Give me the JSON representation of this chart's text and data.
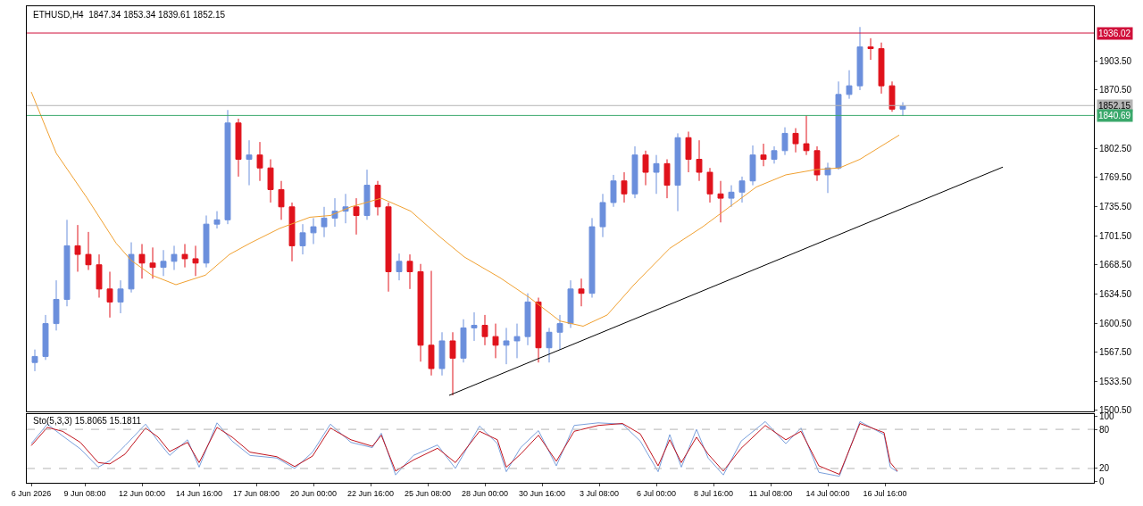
{
  "chart_data": [
    {
      "type": "candlestick",
      "title": "ETHUSD,H4  1847.34 1853.34 1839.61 1852.15",
      "x": [
        "2026-06-07T00:00",
        "2026-06-07T12:00",
        "2026-06-08T00:00",
        "2026-06-08T12:00",
        "2026-06-09T00:00",
        "2026-06-09T12:00",
        "2026-06-10T00:00",
        "2026-06-10T12:00",
        "2026-06-11T00:00",
        "2026-06-11T12:00",
        "2026-06-12T00:00",
        "2026-06-12T12:00",
        "2026-06-13T00:00",
        "2026-06-13T12:00",
        "2026-06-14T00:00",
        "2026-06-14T12:00",
        "2026-06-15T00:00",
        "2026-06-15T12:00",
        "2026-06-16T00:00",
        "2026-06-16T12:00",
        "2026-06-17T00:00",
        "2026-06-17T12:00",
        "2026-06-18T00:00",
        "2026-06-18T12:00",
        "2026-06-19T00:00",
        "2026-06-19T12:00",
        "2026-06-20T00:00",
        "2026-06-20T12:00",
        "2026-06-21T00:00",
        "2026-06-21T12:00",
        "2026-06-22T00:00",
        "2026-06-22T12:00",
        "2026-06-23T00:00",
        "2026-06-23T12:00",
        "2026-06-24T00:00",
        "2026-06-24T12:00",
        "2026-06-25T00:00",
        "2026-06-25T12:00",
        "2026-06-26T00:00",
        "2026-06-26T12:00",
        "2026-06-27T00:00",
        "2026-06-27T12:00",
        "2026-06-28T00:00",
        "2026-06-28T12:00",
        "2026-06-29T00:00",
        "2026-06-29T12:00",
        "2026-06-30T00:00",
        "2026-06-30T12:00",
        "2026-07-01T00:00",
        "2026-07-01T12:00",
        "2026-07-02T00:00",
        "2026-07-02T12:00",
        "2026-07-03T00:00",
        "2026-07-03T12:00",
        "2026-07-04T00:00",
        "2026-07-04T12:00",
        "2026-07-05T00:00",
        "2026-07-05T12:00",
        "2026-07-06T00:00",
        "2026-07-06T12:00",
        "2026-07-07T00:00",
        "2026-07-07T12:00",
        "2026-07-08T00:00",
        "2026-07-08T12:00",
        "2026-07-09T00:00",
        "2026-07-09T12:00",
        "2026-07-10T00:00",
        "2026-07-10T12:00",
        "2026-07-11T00:00",
        "2026-07-11T12:00",
        "2026-07-12T00:00",
        "2026-07-12T12:00",
        "2026-07-13T00:00",
        "2026-07-13T12:00",
        "2026-07-14T00:00",
        "2026-07-14T12:00",
        "2026-07-15T00:00",
        "2026-07-15T12:00",
        "2026-07-16T00:00",
        "2026-07-16T12:00",
        "2026-07-17T00:00",
        "2026-07-17T12:00"
      ],
      "ohlc": [
        [
          1555,
          1570,
          1545,
          1562
        ],
        [
          1562,
          1610,
          1558,
          1600
        ],
        [
          1600,
          1650,
          1592,
          1628
        ],
        [
          1628,
          1720,
          1620,
          1690
        ],
        [
          1690,
          1714,
          1660,
          1680
        ],
        [
          1680,
          1706,
          1662,
          1668
        ],
        [
          1668,
          1680,
          1630,
          1640
        ],
        [
          1640,
          1660,
          1607,
          1625
        ],
        [
          1625,
          1650,
          1612,
          1640
        ],
        [
          1640,
          1694,
          1636,
          1680
        ],
        [
          1680,
          1692,
          1652,
          1670
        ],
        [
          1670,
          1688,
          1652,
          1665
        ],
        [
          1665,
          1685,
          1655,
          1672
        ],
        [
          1672,
          1690,
          1662,
          1680
        ],
        [
          1680,
          1692,
          1665,
          1675
        ],
        [
          1675,
          1690,
          1655,
          1670
        ],
        [
          1670,
          1725,
          1665,
          1715
        ],
        [
          1715,
          1730,
          1710,
          1720
        ],
        [
          1720,
          1847,
          1715,
          1832
        ],
        [
          1832,
          1837,
          1770,
          1790
        ],
        [
          1790,
          1812,
          1760,
          1795
        ],
        [
          1795,
          1810,
          1765,
          1780
        ],
        [
          1780,
          1790,
          1740,
          1755
        ],
        [
          1755,
          1765,
          1720,
          1735
        ],
        [
          1735,
          1740,
          1672,
          1690
        ],
        [
          1690,
          1715,
          1680,
          1705
        ],
        [
          1705,
          1722,
          1692,
          1712
        ],
        [
          1712,
          1735,
          1700,
          1722
        ],
        [
          1722,
          1745,
          1712,
          1730
        ],
        [
          1730,
          1750,
          1716,
          1735
        ],
        [
          1735,
          1745,
          1703,
          1725
        ],
        [
          1725,
          1778,
          1720,
          1760
        ],
        [
          1760,
          1765,
          1725,
          1735
        ],
        [
          1735,
          1740,
          1637,
          1660
        ],
        [
          1660,
          1681,
          1650,
          1672
        ],
        [
          1672,
          1680,
          1640,
          1660
        ],
        [
          1660,
          1669,
          1556,
          1575
        ],
        [
          1575,
          1661,
          1540,
          1548
        ],
        [
          1548,
          1590,
          1540,
          1580
        ],
        [
          1580,
          1590,
          1517,
          1560
        ],
        [
          1560,
          1605,
          1555,
          1595
        ],
        [
          1595,
          1613,
          1580,
          1598
        ],
        [
          1598,
          1610,
          1575,
          1585
        ],
        [
          1585,
          1600,
          1560,
          1575
        ],
        [
          1575,
          1595,
          1553,
          1580
        ],
        [
          1580,
          1600,
          1560,
          1585
        ],
        [
          1585,
          1635,
          1575,
          1625
        ],
        [
          1625,
          1630,
          1555,
          1572
        ],
        [
          1572,
          1595,
          1555,
          1590
        ],
        [
          1590,
          1610,
          1570,
          1600
        ],
        [
          1600,
          1650,
          1595,
          1640
        ],
        [
          1640,
          1652,
          1620,
          1635
        ],
        [
          1635,
          1722,
          1630,
          1712
        ],
        [
          1712,
          1750,
          1700,
          1740
        ],
        [
          1740,
          1772,
          1735,
          1765
        ],
        [
          1765,
          1775,
          1740,
          1750
        ],
        [
          1750,
          1805,
          1745,
          1795
        ],
        [
          1795,
          1800,
          1760,
          1775
        ],
        [
          1775,
          1795,
          1750,
          1785
        ],
        [
          1785,
          1790,
          1745,
          1760
        ],
        [
          1760,
          1820,
          1730,
          1815
        ],
        [
          1815,
          1822,
          1775,
          1790
        ],
        [
          1790,
          1812,
          1765,
          1775
        ],
        [
          1775,
          1780,
          1740,
          1750
        ],
        [
          1750,
          1765,
          1717,
          1745
        ],
        [
          1745,
          1760,
          1735,
          1752
        ],
        [
          1752,
          1770,
          1740,
          1765
        ],
        [
          1765,
          1806,
          1760,
          1795
        ],
        [
          1795,
          1808,
          1782,
          1790
        ],
        [
          1790,
          1805,
          1785,
          1800
        ],
        [
          1800,
          1827,
          1795,
          1820
        ],
        [
          1820,
          1826,
          1798,
          1808
        ],
        [
          1808,
          1841,
          1795,
          1800
        ],
        [
          1800,
          1805,
          1765,
          1772
        ],
        [
          1772,
          1786,
          1751,
          1780
        ],
        [
          1780,
          1880,
          1778,
          1865
        ],
        [
          1865,
          1893,
          1860,
          1875
        ],
        [
          1875,
          1943,
          1870,
          1920
        ],
        [
          1920,
          1930,
          1905,
          1918
        ],
        [
          1918,
          1925,
          1866,
          1875
        ],
        [
          1875,
          1880,
          1845,
          1848
        ],
        [
          1848,
          1856,
          1840,
          1852
        ]
      ],
      "colors": [
        "#6b8fdc",
        "#6b8fdc",
        "#6b8fdc",
        "#6b8fdc",
        "#e0121b",
        "#e0121b",
        "#e0121b",
        "#e0121b",
        "#6b8fdc",
        "#6b8fdc",
        "#e0121b",
        "#e0121b",
        "#6b8fdc",
        "#6b8fdc",
        "#e0121b",
        "#e0121b",
        "#6b8fdc",
        "#6b8fdc",
        "#6b8fdc",
        "#e0121b",
        "#6b8fdc",
        "#e0121b",
        "#e0121b",
        "#e0121b",
        "#e0121b",
        "#6b8fdc",
        "#6b8fdc",
        "#6b8fdc",
        "#6b8fdc",
        "#6b8fdc",
        "#e0121b",
        "#6b8fdc",
        "#e0121b",
        "#e0121b",
        "#6b8fdc",
        "#e0121b",
        "#e0121b",
        "#e0121b",
        "#6b8fdc",
        "#e0121b",
        "#6b8fdc",
        "#6b8fdc",
        "#e0121b",
        "#e0121b",
        "#6b8fdc",
        "#6b8fdc",
        "#6b8fdc",
        "#e0121b",
        "#6b8fdc",
        "#6b8fdc",
        "#6b8fdc",
        "#e0121b",
        "#6b8fdc",
        "#6b8fdc",
        "#6b8fdc",
        "#e0121b",
        "#6b8fdc",
        "#e0121b",
        "#6b8fdc",
        "#e0121b",
        "#6b8fdc",
        "#e0121b",
        "#e0121b",
        "#e0121b",
        "#e0121b",
        "#6b8fdc",
        "#6b8fdc",
        "#6b8fdc",
        "#e0121b",
        "#6b8fdc",
        "#6b8fdc",
        "#e0121b",
        "#e0121b",
        "#e0121b",
        "#6b8fdc",
        "#6b8fdc",
        "#6b8fdc",
        "#6b8fdc",
        "#e0121b",
        "#e0121b",
        "#e0121b",
        "#6b8fdc"
      ],
      "series": [
        {
          "type": "line",
          "color": "#f0a030",
          "x": [
            "2026-06-06T20:00",
            "2026-06-08T00:00",
            "2026-06-09T10:00",
            "2026-06-10T19:00",
            "2026-06-11T12:00",
            "2026-06-12T11:00",
            "2026-06-13T14:00",
            "2026-06-14T23:00",
            "2026-06-16T02:00",
            "2026-06-17T01:00",
            "2026-06-18T10:00",
            "2026-06-19T20:00",
            "2026-06-20T19:00",
            "2026-06-21T18:00",
            "2026-06-23T04:00",
            "2026-06-24T13:00",
            "2026-06-25T22:00",
            "2026-06-27T01:00",
            "2026-06-28T17:00",
            "2026-06-30T02:00",
            "2026-07-01T12:00",
            "2026-07-02T14:00",
            "2026-07-03T17:00",
            "2026-07-04T23:00",
            "2026-07-06T15:00",
            "2026-07-08T04:00",
            "2026-07-10T16:00",
            "2026-07-12T01:00",
            "2026-07-13T10:00",
            "2026-07-14T13:00",
            "2026-07-15T12:00",
            "2026-07-17T08:00"
          ],
          "values": [
            1868,
            1797,
            1746,
            1693,
            1673,
            1656,
            1645,
            1656,
            1680,
            1693,
            1710,
            1723,
            1725,
            1735,
            1745,
            1730,
            1700,
            1677,
            1653,
            1630,
            1603,
            1597,
            1610,
            1645,
            1687,
            1712,
            1758,
            1772,
            1778,
            1780,
            1790,
            1818
          ]
        },
        {
          "type": "line",
          "color": "#000000",
          "x": [
            "2026-06-26T08:00",
            "2026-07-22T04:00"
          ],
          "values": [
            1517,
            1781
          ]
        }
      ],
      "marker": "none",
      "ref_lines": [
        {
          "axis": "y",
          "value": 1936.02,
          "label": "1936.02",
          "color": "#d0103a"
        },
        {
          "axis": "y",
          "value": 1852.15,
          "label": "1852.15",
          "color": "#b4b4b4"
        },
        {
          "axis": "y",
          "value": 1840.69,
          "label": "1840.69",
          "color": "#3aa86b"
        }
      ],
      "xlim": [
        "2026-06-06T15:00",
        "2026-07-26T10:00"
      ],
      "ylim": [
        1498,
        1967
      ],
      "yticks": [
        {
          "value": 1500.5,
          "label": "1500.50"
        },
        {
          "value": 1533.5,
          "label": "1533.50"
        },
        {
          "value": 1567.5,
          "label": "1567.50"
        },
        {
          "value": 1600.5,
          "label": "1600.50"
        },
        {
          "value": 1634.5,
          "label": "1634.50"
        },
        {
          "value": 1668.5,
          "label": "1668.50"
        },
        {
          "value": 1701.5,
          "label": "1701.50"
        },
        {
          "value": 1735.5,
          "label": "1735.50"
        },
        {
          "value": 1769.5,
          "label": "1769.50"
        },
        {
          "value": 1802.5,
          "label": "1802.50"
        },
        {
          "value": 1870.5,
          "label": "1870.50"
        },
        {
          "value": 1903.5,
          "label": "1903.50"
        }
      ],
      "tick_labels": "y",
      "grid": false
    },
    {
      "type": "line",
      "title": "Sto(5,3,3) 15.8065 15.1811",
      "marker": "none",
      "x": [
        "2026-06-06T20:00",
        "2026-06-07T14:00",
        "2026-06-08T07:00",
        "2026-06-09T03:00",
        "2026-06-09T23:00",
        "2026-06-10T12:00",
        "2026-06-11T05:00",
        "2026-06-12T04:00",
        "2026-06-12T18:00",
        "2026-06-13T07:00",
        "2026-06-14T03:00",
        "2026-06-14T16:00",
        "2026-06-15T12:00",
        "2026-06-16T05:00",
        "2026-06-17T01:00",
        "2026-06-18T07:00",
        "2026-06-19T03:00",
        "2026-06-19T23:00",
        "2026-06-20T19:00",
        "2026-06-21T18:00",
        "2026-06-22T18:00",
        "2026-06-23T04:00",
        "2026-06-23T20:00",
        "2026-06-24T16:00",
        "2026-06-25T19:00",
        "2026-06-26T15:00",
        "2026-06-27T18:00",
        "2026-06-28T14:00",
        "2026-06-29T00:00",
        "2026-06-29T16:00",
        "2026-06-30T12:00",
        "2026-07-01T08:00",
        "2026-07-02T04:00",
        "2026-07-03T07:00",
        "2026-07-04T10:00",
        "2026-07-05T06:00",
        "2026-07-06T02:00",
        "2026-07-06T15:00",
        "2026-07-07T04:00",
        "2026-07-07T21:00",
        "2026-07-08T10:00",
        "2026-07-09T03:00",
        "2026-07-09T23:00",
        "2026-07-11T02:00",
        "2026-07-12T01:00",
        "2026-07-12T18:00",
        "2026-07-13T14:00",
        "2026-07-14T13:00",
        "2026-07-15T12:00",
        "2026-07-16T15:00",
        "2026-07-16T22:00",
        "2026-07-17T06:00"
      ],
      "series": [
        {
          "color": "#7aa0dc",
          "values": [
            58,
            88,
            70,
            50,
            22,
            32,
            55,
            88,
            62,
            40,
            64,
            22,
            90,
            62,
            40,
            36,
            20,
            45,
            88,
            60,
            52,
            74,
            10,
            40,
            56,
            20,
            85,
            58,
            15,
            52,
            78,
            24,
            86,
            90,
            88,
            62,
            15,
            72,
            22,
            80,
            36,
            10,
            62,
            92,
            58,
            82,
            14,
            8,
            92,
            72,
            22,
            15
          ]
        },
        {
          "color": "#c0141e",
          "values": [
            55,
            83,
            77,
            60,
            29,
            27,
            42,
            82,
            68,
            46,
            60,
            29,
            83,
            68,
            45,
            38,
            23,
            39,
            82,
            64,
            54,
            71,
            16,
            33,
            51,
            29,
            77,
            64,
            22,
            42,
            71,
            31,
            77,
            86,
            89,
            73,
            24,
            64,
            29,
            68,
            42,
            16,
            51,
            86,
            64,
            77,
            24,
            11,
            89,
            75,
            29,
            16
          ]
        }
      ],
      "ref_lines": [
        {
          "axis": "y",
          "value": 80,
          "color": "#b4b4b4",
          "line_style": "dashed"
        },
        {
          "axis": "y",
          "value": 20,
          "color": "#b4b4b4",
          "line_style": "dashed"
        }
      ],
      "xlim": [
        "2026-06-06T15:00",
        "2026-07-26T10:00"
      ],
      "xticks": [
        {
          "value": "2026-06-06T20:00",
          "label": "6 Jun 2026"
        },
        {
          "value": "2026-06-09T08:00",
          "label": "9 Jun 08:00"
        },
        {
          "value": "2026-06-12T00:00",
          "label": "12 Jun 00:00"
        },
        {
          "value": "2026-06-14T16:00",
          "label": "14 Jun 16:00"
        },
        {
          "value": "2026-06-17T08:00",
          "label": "17 Jun 08:00"
        },
        {
          "value": "2026-06-20T00:00",
          "label": "20 Jun 00:00"
        },
        {
          "value": "2026-06-22T16:00",
          "label": "22 Jun 16:00"
        },
        {
          "value": "2026-06-25T08:00",
          "label": "25 Jun 08:00"
        },
        {
          "value": "2026-06-28T00:00",
          "label": "28 Jun 00:00"
        },
        {
          "value": "2026-06-30T16:00",
          "label": "30 Jun 16:00"
        },
        {
          "value": "2026-07-03T08:00",
          "label": "3 Jul 08:00"
        },
        {
          "value": "2026-07-06T00:00",
          "label": "6 Jul 00:00"
        },
        {
          "value": "2026-07-08T16:00",
          "label": "8 Jul 16:00"
        },
        {
          "value": "2026-07-11T08:00",
          "label": "11 Jul 08:00"
        },
        {
          "value": "2026-07-14T00:00",
          "label": "14 Jul 00:00"
        },
        {
          "value": "2026-07-16T16:00",
          "label": "16 Jul 16:00"
        }
      ],
      "ylim": [
        -2,
        104
      ],
      "yticks": [
        0,
        20,
        80,
        100
      ],
      "grid": false
    }
  ]
}
